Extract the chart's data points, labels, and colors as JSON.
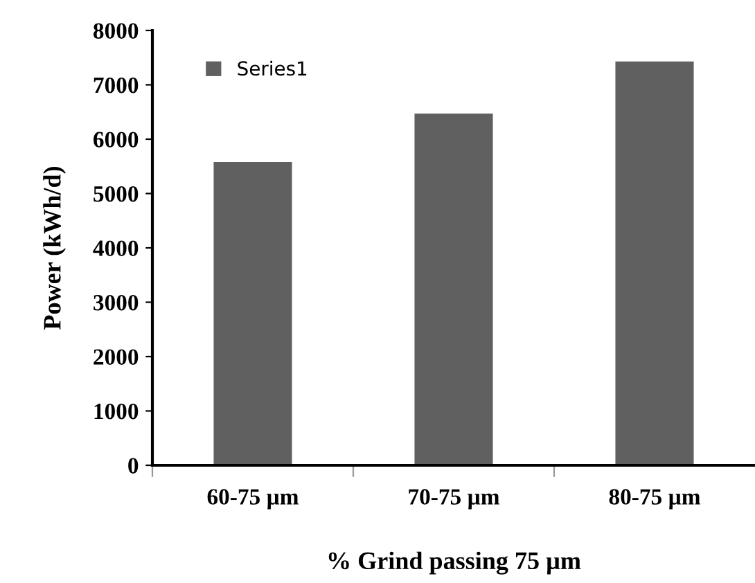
{
  "chart_data": {
    "type": "bar",
    "xlabel": "% Grind passing 75 µm",
    "ylabel": "Power (kWh/d)",
    "categories": [
      "60-75 µm",
      "70-75 µm",
      "80-75 µm"
    ],
    "series": [
      {
        "name": "Series1",
        "color": "#606060",
        "values": [
          5580,
          6470,
          7430
        ]
      }
    ],
    "ylim": [
      0,
      8000
    ],
    "yticks": [
      0,
      1000,
      2000,
      3000,
      4000,
      5000,
      6000,
      7000,
      8000
    ],
    "grid": false,
    "legend": "top left"
  }
}
